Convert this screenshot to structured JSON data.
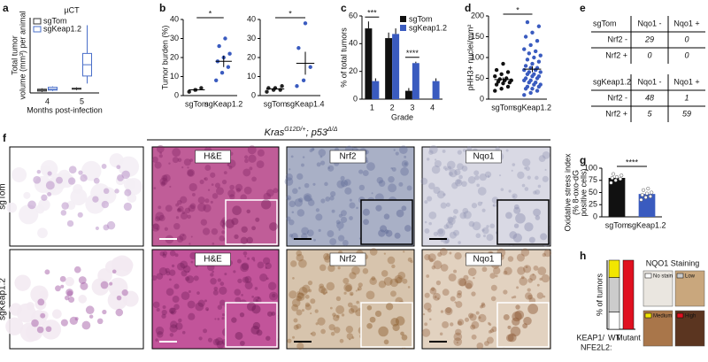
{
  "chart_data": [
    {
      "panel": "a",
      "type": "box",
      "title": "µCT",
      "ylabel": [
        "Total tumor",
        "volume (mm³) per animal"
      ],
      "xlabel": "Months post-infection",
      "categories": [
        "4",
        "5"
      ],
      "ylim": [
        0,
        80
      ],
      "series": [
        {
          "name": "sgTom",
          "color": "#333333",
          "boxes": [
            {
              "min": 1,
              "q1": 2,
              "median": 3,
              "q3": 4,
              "max": 5
            },
            {
              "min": 3,
              "q1": 4,
              "median": 4.5,
              "q3": 5,
              "max": 6
            }
          ]
        },
        {
          "name": "sgKeap1.2",
          "color": "#4a6fc9",
          "boxes": [
            {
              "min": 2,
              "q1": 3,
              "median": 4,
              "q3": 6,
              "max": 7
            },
            {
              "min": 10,
              "q1": 18,
              "median": 30,
              "q3": 42,
              "max": 72
            }
          ]
        }
      ]
    },
    {
      "panel": "b",
      "type": "dot",
      "ylabel": [
        "Tumor burden (%)"
      ],
      "categories": [
        "sgTom",
        "sgKeap1.2"
      ],
      "ylim": [
        0,
        40
      ],
      "yticks": [
        0,
        10,
        20,
        30,
        40
      ],
      "annotation": "*",
      "groups": [
        {
          "color": "#222222",
          "points": [
            2,
            3,
            4
          ],
          "mean": 3,
          "error": 0.8
        },
        {
          "color": "#3a5bbf",
          "points": [
            8,
            12,
            15,
            18,
            20,
            22,
            26,
            30
          ],
          "mean": 18,
          "error": 3
        }
      ]
    },
    {
      "type": "dot",
      "categories": [
        "sgTom",
        "sgKeap1.4"
      ],
      "ylim": [
        0,
        40
      ],
      "yticks": [
        0,
        10,
        20,
        30,
        40
      ],
      "annotation": "*",
      "groups": [
        {
          "color": "#222222",
          "points": [
            2,
            3,
            3,
            4,
            4,
            5
          ],
          "mean": 3.5,
          "error": 0.5
        },
        {
          "color": "#3a5bbf",
          "points": [
            5,
            8,
            15,
            25,
            38
          ],
          "mean": 17,
          "error": 6
        }
      ]
    },
    {
      "panel": "c",
      "type": "grouped_bar",
      "ylabel": [
        "% of total tumors"
      ],
      "xlabel": "Grade",
      "categories": [
        "1",
        "2",
        "3",
        "4"
      ],
      "ylim": [
        0,
        60
      ],
      "yticks": [
        0,
        20,
        40,
        60
      ],
      "annotations": [
        "***",
        null,
        "****",
        null
      ],
      "series": [
        {
          "name": "sgTom",
          "color": "#111111",
          "values": [
            51,
            44,
            6,
            0
          ],
          "errors": [
            5,
            4,
            2,
            0
          ]
        },
        {
          "name": "sgKeap1.2",
          "color": "#3a5bbf",
          "values": [
            13,
            47,
            26,
            13
          ],
          "errors": [
            2,
            4,
            1,
            2
          ]
        }
      ]
    },
    {
      "panel": "d",
      "type": "dot",
      "ylabel": [
        "pHH3+ nuclei/mm²"
      ],
      "categories": [
        "sgTom",
        "sgKeap1.2"
      ],
      "ylim": [
        0,
        200
      ],
      "yticks": [
        0,
        50,
        100,
        150,
        200
      ],
      "annotation": "*",
      "groups": [
        {
          "color": "#111111",
          "points": [
            20,
            25,
            30,
            35,
            38,
            40,
            42,
            45,
            45,
            48,
            50,
            55,
            60,
            65,
            70,
            85
          ],
          "mean": 47,
          "error": 5
        },
        {
          "color": "#3a5bbf",
          "points": [
            10,
            15,
            20,
            25,
            25,
            30,
            30,
            35,
            35,
            40,
            40,
            45,
            45,
            50,
            50,
            55,
            55,
            60,
            60,
            65,
            65,
            70,
            70,
            75,
            75,
            80,
            85,
            90,
            95,
            100,
            105,
            110,
            115,
            120,
            130,
            140,
            150,
            160,
            175,
            185
          ],
          "mean": 72,
          "error": 7
        }
      ]
    },
    {
      "panel": "g",
      "type": "bar",
      "ylabel": [
        "Oxidative stress index",
        "(% 8-oxo-dG",
        "positive cells)"
      ],
      "categories": [
        "sgTom",
        "sgKeap1.2"
      ],
      "ylim": [
        0,
        100
      ],
      "yticks": [
        0,
        25,
        50,
        75,
        100
      ],
      "annotation": "****",
      "colors": [
        "#111111",
        "#3a5bbf"
      ],
      "values": [
        80,
        47
      ],
      "errors": [
        4,
        3
      ],
      "points": [
        [
          70,
          75,
          78,
          80,
          82,
          85,
          88
        ],
        [
          35,
          40,
          42,
          45,
          48,
          50,
          55,
          58
        ]
      ]
    },
    {
      "panel": "h",
      "type": "stacked_bar",
      "ylabel": [
        "% of tumors"
      ],
      "categories": [
        "WT",
        "Mutant"
      ],
      "xlabel_lines": [
        "KEAP1/",
        "NFE2L2:"
      ],
      "ylim": [
        0,
        100
      ],
      "legend_title": "NQO1 Staining",
      "series": [
        {
          "name": "No stain",
          "color": "#ffffff",
          "values": [
            25,
            0
          ]
        },
        {
          "name": "Low",
          "color": "#cccccc",
          "values": [
            50,
            0
          ]
        },
        {
          "name": "Medium",
          "color": "#f2e600",
          "values": [
            25,
            0
          ]
        },
        {
          "name": "High",
          "color": "#e01020",
          "values": [
            0,
            100
          ]
        }
      ]
    }
  ],
  "tables": {
    "panel": "e",
    "items": [
      {
        "title": "sgTom",
        "columns": [
          "Nqo1 -",
          "Nqo1 +"
        ],
        "rows": [
          {
            "label": "Nrf2 -",
            "cells": [
              29,
              0
            ]
          },
          {
            "label": "Nrf2 +",
            "cells": [
              0,
              0
            ]
          }
        ]
      },
      {
        "title": "sgKeap1.2",
        "columns": [
          "Nqo1 -",
          "Nqo1 +"
        ],
        "rows": [
          {
            "label": "Nrf2 -",
            "cells": [
              48,
              1
            ]
          },
          {
            "label": "Nrf2 +",
            "cells": [
              5,
              59
            ]
          }
        ]
      }
    ]
  },
  "figure": {
    "panel": "f",
    "title": {
      "gene1": "Kras",
      "sup1": "G12D/+",
      "sep": "; ",
      "gene2": "p53",
      "sup2": "Δ/Δ"
    },
    "rows": [
      "sgTom",
      "sgKeap1.2"
    ],
    "stains": [
      null,
      "H&E",
      "Nrf2",
      "Nqo1"
    ]
  }
}
